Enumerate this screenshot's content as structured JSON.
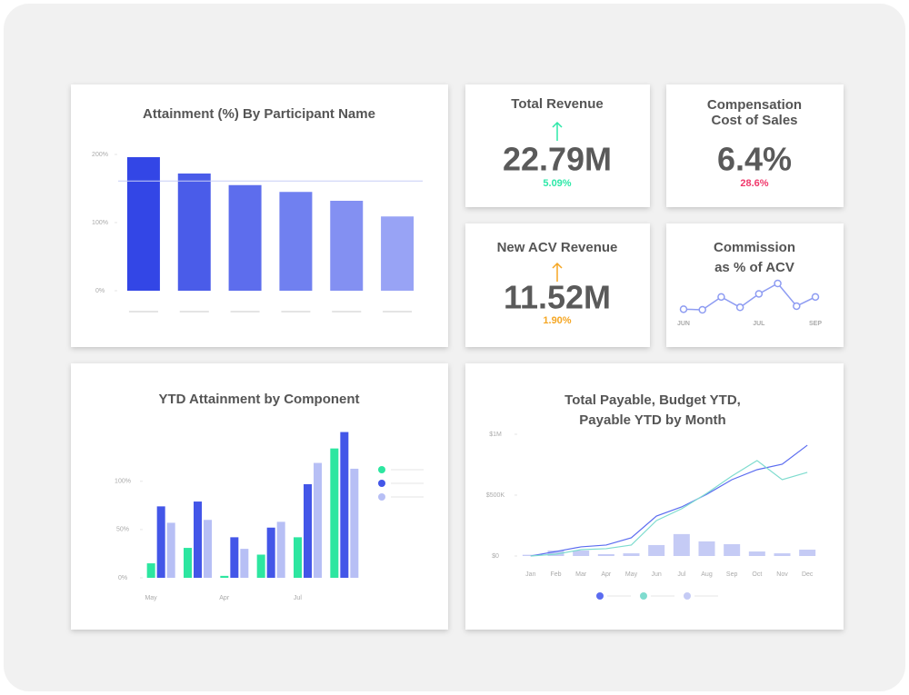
{
  "kpis": [
    {
      "title": [
        "Total Revenue"
      ],
      "value": "22.79M",
      "change": "5.09%",
      "change_color": "#2ee8a8",
      "arrow": "up"
    },
    {
      "title": [
        "Compensation",
        "Cost of Sales"
      ],
      "value": "6.4%",
      "change": "28.6%",
      "change_color": "#f0386b"
    },
    {
      "title": [
        "New ACV Revenue"
      ],
      "value": "11.52M",
      "change": "1.90%",
      "change_color": "#f5a623",
      "arrow": "up"
    }
  ],
  "chart_data": [
    {
      "type": "bar",
      "title": [
        "Attainment (%) By Participant Name"
      ],
      "categories": [
        null,
        null,
        null,
        null,
        null,
        null
      ],
      "values": [
        196,
        172,
        155,
        145,
        132,
        109
      ],
      "colors": [
        "#3346e6",
        "#4a5ce9",
        "#5d6ded",
        "#7080f0",
        "#8390f2",
        "#98a3f5"
      ],
      "target_line": 161,
      "target_color": "#c7cdf5",
      "ylim": [
        0,
        200
      ],
      "yticks": [
        {
          "value": 0,
          "label": "0%"
        },
        {
          "value": 100,
          "label": "100%"
        },
        {
          "value": 200,
          "label": "200%"
        }
      ]
    },
    {
      "type": "line",
      "title": [
        "Commission",
        "as % of ACV"
      ],
      "categories": [
        "JUN",
        null,
        null,
        null,
        "JUL",
        null,
        null,
        "SEP"
      ],
      "values": [
        2,
        1.9,
        4,
        2.3,
        4.5,
        6.2,
        2.5,
        4
      ],
      "color": "#8e9cf2"
    },
    {
      "type": "grouped",
      "title": [
        "YTD Attainment by Component"
      ],
      "categories": [
        "May",
        null,
        "Apr",
        null,
        "Jul",
        null
      ],
      "series": [
        {
          "color": "#2de6a0",
          "values": [
            15,
            31,
            2,
            24,
            42,
            134
          ]
        },
        {
          "color": "#4356e8",
          "values": [
            74,
            79,
            42,
            52,
            97,
            151
          ]
        },
        {
          "color": "#b7bff5",
          "values": [
            57,
            60,
            30,
            58,
            119,
            113
          ]
        }
      ],
      "ylim": [
        0,
        160
      ],
      "yticks": [
        {
          "value": 0,
          "label": "0%"
        },
        {
          "value": 50,
          "label": "50%"
        },
        {
          "value": 100,
          "label": "100%"
        }
      ]
    },
    {
      "type": "combo",
      "title": [
        "Total Payable, Budget YTD,",
        "Payable YTD by Month"
      ],
      "categories": [
        "Jan",
        "Feb",
        "Mar",
        "Apr",
        "May",
        "Jun",
        "Jul",
        "Aug",
        "Sep",
        "Oct",
        "Nov",
        "Dec"
      ],
      "series": [
        {
          "color": "#5b6cf0",
          "kind": "line",
          "values": [
            0,
            37000,
            75000,
            90000,
            150000,
            328000,
            403000,
            507000,
            627000,
            709000,
            754000,
            910000
          ]
        },
        {
          "color": "#7fdccf",
          "kind": "line",
          "values": [
            0,
            15000,
            52000,
            60000,
            90000,
            291000,
            388000,
            515000,
            657000,
            784000,
            627000,
            687000
          ]
        },
        {
          "color": "#c5cbf5",
          "kind": "bar",
          "values": [
            10000,
            45000,
            45000,
            15000,
            22000,
            90000,
            180000,
            120000,
            97000,
            37000,
            22000,
            52000
          ]
        }
      ],
      "ylim": [
        0,
        1100000
      ],
      "yticks": [
        {
          "value": 0,
          "label": "$0"
        },
        {
          "value": 500000,
          "label": "$500K"
        },
        {
          "value": 1000000,
          "label": "$1M"
        }
      ]
    }
  ]
}
